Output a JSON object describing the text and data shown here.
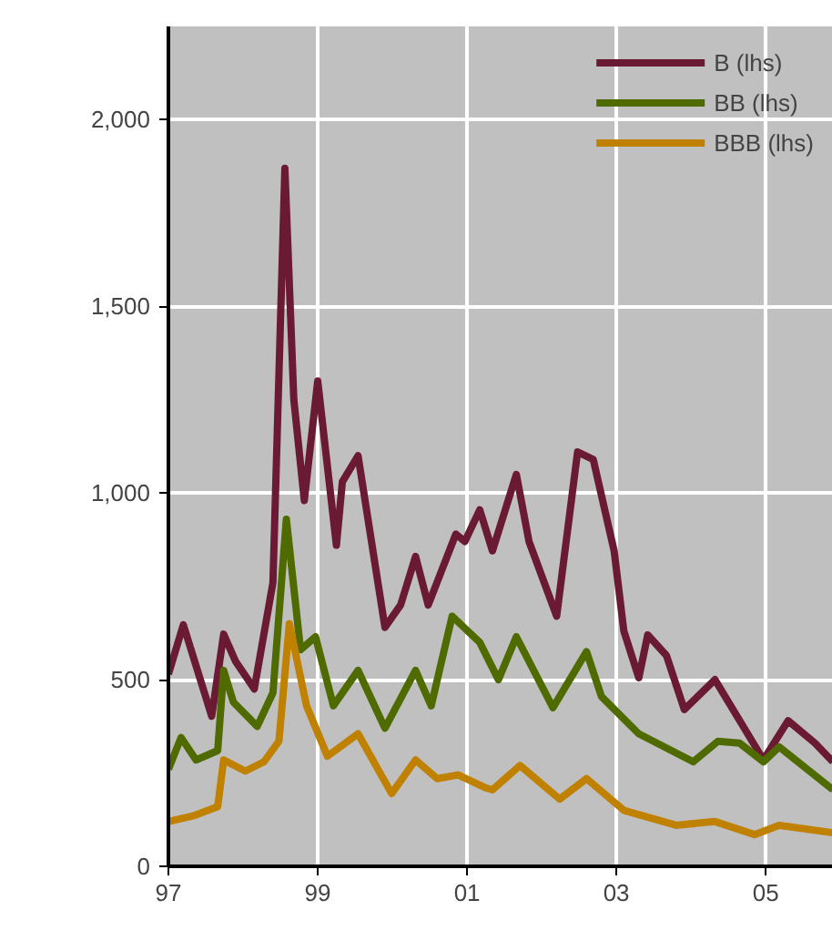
{
  "chart_data": {
    "type": "line",
    "xlim": [
      1997,
      2005.9
    ],
    "xticks": [
      {
        "value": 1997,
        "label": "97"
      },
      {
        "value": 1999,
        "label": "99"
      },
      {
        "value": 2001,
        "label": "01"
      },
      {
        "value": 2003,
        "label": "03"
      },
      {
        "value": 2005,
        "label": "05"
      }
    ],
    "ylim": [
      0,
      2250
    ],
    "yticks": [
      0,
      {
        "value": 500,
        "label": "500"
      },
      {
        "value": 1000,
        "label": "1,000"
      },
      {
        "value": 1500,
        "label": "1,500"
      },
      {
        "value": 2000,
        "label": "2,000"
      }
    ],
    "grid": true,
    "legend": "top right",
    "series": [
      {
        "name": "B (lhs)",
        "color": "#6b1a33",
        "x": [
          1997.0,
          1997.2,
          1997.58,
          1997.74,
          1997.9,
          1998.15,
          1998.4,
          1998.56,
          1998.68,
          1998.82,
          1999.0,
          1999.25,
          1999.33,
          1999.54,
          1999.9,
          2000.11,
          2000.31,
          2000.48,
          2000.85,
          2000.97,
          2001.17,
          2001.34,
          2001.66,
          2001.83,
          2002.2,
          2002.48,
          2002.69,
          2002.97,
          2003.1,
          2003.3,
          2003.42,
          2003.67,
          2003.91,
          2004.32,
          2004.97,
          2005.3,
          2005.66,
          2005.9
        ],
        "values": [
          515,
          647,
          402,
          622,
          549,
          475,
          760,
          1870,
          1250,
          980,
          1300,
          860,
          1030,
          1100,
          640,
          700,
          830,
          700,
          890,
          870,
          955,
          845,
          1050,
          870,
          670,
          1110,
          1090,
          845,
          630,
          505,
          620,
          565,
          420,
          500,
          285,
          390,
          330,
          280
        ]
      },
      {
        "name": "BB (lhs)",
        "color": "#4f6b00",
        "x": [
          1997.0,
          1997.17,
          1997.37,
          1997.66,
          1997.74,
          1997.87,
          1998.19,
          1998.4,
          1998.58,
          1998.77,
          1998.97,
          1999.21,
          1999.54,
          1999.9,
          2000.31,
          2000.52,
          2000.8,
          2001.17,
          2001.42,
          2001.66,
          2002.15,
          2002.6,
          2002.8,
          2003.3,
          2004.03,
          2004.36,
          2004.65,
          2004.97,
          2005.18,
          2005.9
        ],
        "values": [
          260,
          345,
          285,
          310,
          525,
          440,
          375,
          465,
          930,
          580,
          615,
          430,
          525,
          370,
          525,
          430,
          670,
          600,
          500,
          615,
          425,
          575,
          455,
          355,
          280,
          335,
          330,
          280,
          320,
          205
        ]
      },
      {
        "name": "BBB (lhs)",
        "color": "#c08000",
        "x": [
          1997.0,
          1997.33,
          1997.66,
          1997.74,
          1998.03,
          1998.28,
          1998.48,
          1998.62,
          1998.85,
          1999.13,
          1999.54,
          1999.99,
          2000.31,
          2000.6,
          2000.88,
          2001.25,
          2001.34,
          2001.71,
          2002.24,
          2002.6,
          2003.1,
          2003.8,
          2004.32,
          2004.85,
          2005.18,
          2005.9
        ],
        "values": [
          120,
          135,
          160,
          285,
          255,
          280,
          335,
          650,
          430,
          295,
          355,
          195,
          285,
          235,
          245,
          210,
          205,
          270,
          180,
          235,
          150,
          110,
          120,
          85,
          110,
          90
        ]
      }
    ]
  }
}
